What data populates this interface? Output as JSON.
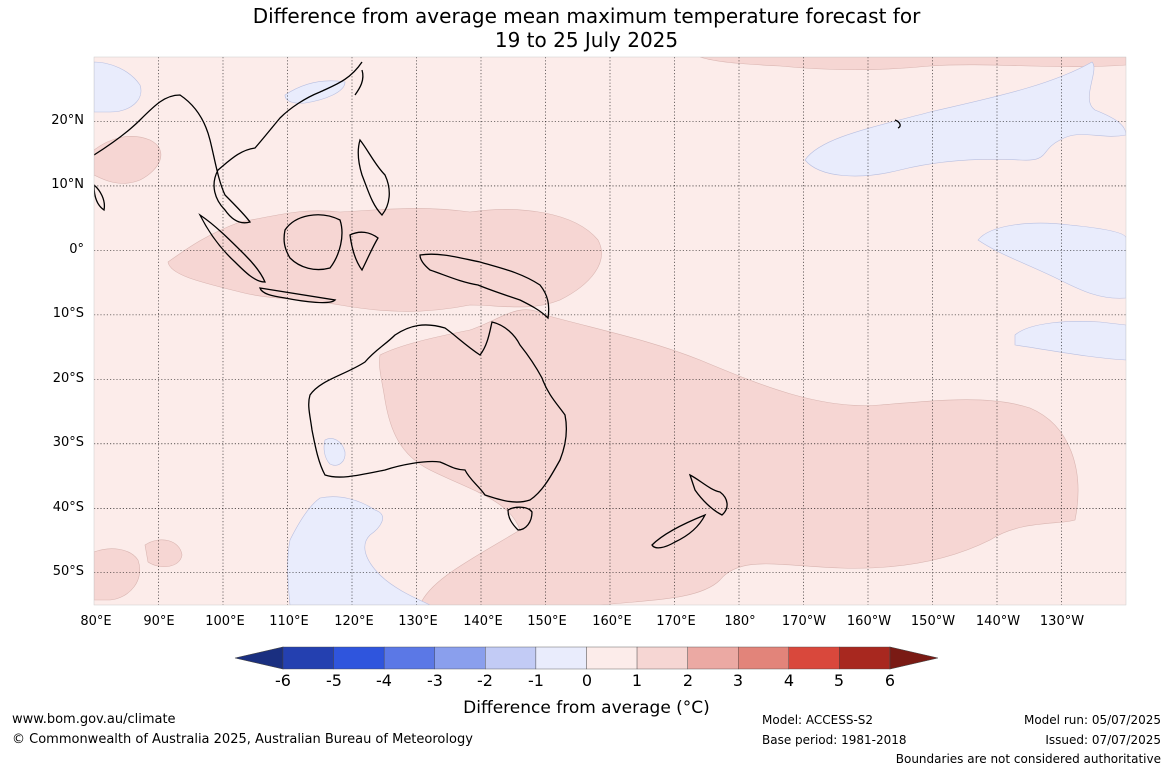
{
  "title": {
    "line1": "Difference from average mean maximum temperature forecast for",
    "line2": "19 to 25 July 2025"
  },
  "map": {
    "lat_labels": [
      "20°N",
      "10°N",
      "0°",
      "10°S",
      "20°S",
      "30°S",
      "40°S",
      "50°S"
    ],
    "lon_labels": [
      "80°E",
      "90°E",
      "100°E",
      "110°E",
      "120°E",
      "130°E",
      "140°E",
      "150°E",
      "160°E",
      "170°E",
      "180°",
      "170°W",
      "160°W",
      "150°W",
      "140°W",
      "130°W"
    ],
    "extent": {
      "lon_min": 80,
      "lon_max": 240,
      "lat_min": -55,
      "lat_max": 30
    }
  },
  "colorbar": {
    "title": "Difference from average (°C)",
    "ticks": [
      "-6",
      "-5",
      "-4",
      "-3",
      "-2",
      "-1",
      "0",
      "1",
      "2",
      "3",
      "4",
      "5",
      "6"
    ],
    "colors": [
      "#1a2f80",
      "#2440b0",
      "#2f55dd",
      "#5b78e6",
      "#8a9fed",
      "#c2cbf5",
      "#e9ecfc",
      "#fcecea",
      "#f6d6d3",
      "#eba9a3",
      "#e2847a",
      "#d9483c",
      "#a8281f",
      "#7a1a14"
    ]
  },
  "footer": {
    "website": "www.bom.gov.au/climate",
    "copyright": "© Commonwealth of Australia 2025, Australian Bureau of Meteorology",
    "model": "Model: ACCESS-S2",
    "base_period": "Base period: 1981-2018",
    "model_run": "Model run: 05/07/2025",
    "issued": "Issued: 07/07/2025",
    "disclaimer": "Boundaries are not considered authoritative"
  }
}
